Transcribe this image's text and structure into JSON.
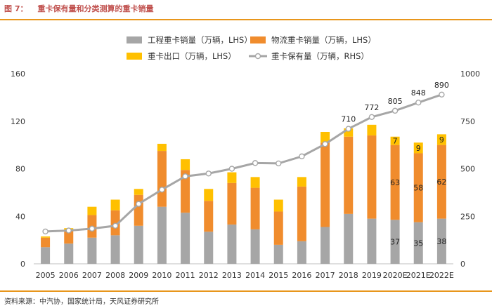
{
  "figure": {
    "number": "图 7：",
    "title": "重卡保有量和分类测算的重卡销量",
    "source": "资料来源：中汽协，国家统计局，天风证券研究所"
  },
  "chart_data": {
    "type": "bar",
    "stacked": true,
    "categories": [
      "2005",
      "2006",
      "2007",
      "2008",
      "2009",
      "2010",
      "2011",
      "2012",
      "2013",
      "2014",
      "2015",
      "2016",
      "2017",
      "2018",
      "2019",
      "2020E",
      "2021E",
      "2022E"
    ],
    "series": [
      {
        "name": "工程重卡销量（万辆，LHS）",
        "color": "#a6a6a6",
        "axis": "left",
        "values": [
          14,
          17,
          22,
          24,
          32,
          48,
          43,
          27,
          33,
          29,
          16,
          19,
          31,
          42,
          38,
          37,
          35,
          38
        ]
      },
      {
        "name": "物流重卡销量（万辆，LHS）",
        "color": "#f08c2d",
        "axis": "left",
        "values": [
          8,
          11,
          19,
          21,
          26,
          47,
          36,
          26,
          35,
          35,
          28,
          46,
          71,
          65,
          70,
          63,
          58,
          62
        ]
      },
      {
        "name": "重卡出口（万辆，LHS）",
        "color": "#ffc000",
        "axis": "left",
        "values": [
          1,
          2,
          7,
          9,
          5,
          6,
          9,
          10,
          9,
          9,
          10,
          8,
          9,
          7,
          9,
          7,
          9,
          9
        ]
      },
      {
        "name": "重卡保有量（万辆，RHS）",
        "color": "#a6a6a6",
        "axis": "right",
        "type": "line",
        "values": [
          170,
          175,
          185,
          200,
          315,
          390,
          460,
          475,
          500,
          530,
          528,
          565,
          630,
          710,
          772,
          805,
          848,
          890
        ]
      }
    ],
    "left_axis": {
      "ylim": [
        0,
        160
      ],
      "ticks": [
        0,
        40,
        80,
        120,
        160
      ]
    },
    "right_axis": {
      "ylim": [
        0,
        1000
      ],
      "ticks": [
        0,
        250,
        500,
        750,
        1000
      ]
    },
    "point_labels": [
      {
        "series": 3,
        "index": 13,
        "text": "710"
      },
      {
        "series": 3,
        "index": 14,
        "text": "772"
      },
      {
        "series": 3,
        "index": 15,
        "text": "805"
      },
      {
        "series": 3,
        "index": 16,
        "text": "848"
      },
      {
        "series": 3,
        "index": 17,
        "text": "890"
      }
    ],
    "bar_labels": [
      {
        "series": 0,
        "index": 15,
        "text": "37"
      },
      {
        "series": 0,
        "index": 16,
        "text": "35"
      },
      {
        "series": 0,
        "index": 17,
        "text": "38"
      },
      {
        "series": 1,
        "index": 15,
        "text": "63"
      },
      {
        "series": 1,
        "index": 16,
        "text": "58"
      },
      {
        "series": 1,
        "index": 17,
        "text": "62"
      },
      {
        "series": 2,
        "index": 15,
        "text": "7"
      },
      {
        "series": 2,
        "index": 16,
        "text": "9"
      },
      {
        "series": 2,
        "index": 17,
        "text": "9"
      }
    ],
    "legend_position": "top"
  }
}
